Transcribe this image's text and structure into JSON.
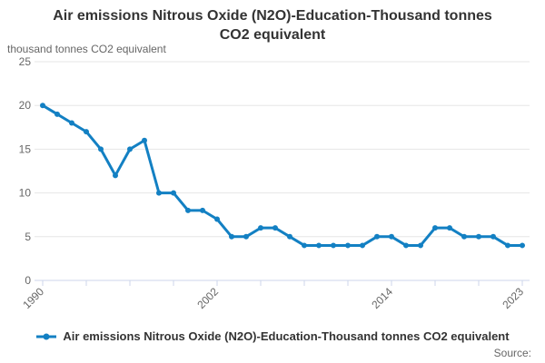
{
  "title": {
    "text": "Air emissions Nitrous Oxide (N2O)-Education-Thousand tonnes CO2 equivalent"
  },
  "y_axis_title": "thousand tonnes CO2 equivalent",
  "legend": {
    "label": "Air emissions Nitrous Oxide (N2O)-Education-Thousand tonnes CO2 equivalent"
  },
  "source_label": "Source:",
  "colors": {
    "line": "#1380C3",
    "axis": "#ccd6eb",
    "grid": "#e6e6e6",
    "tick_label": "#666666",
    "title": "#333333"
  },
  "chart_data": {
    "type": "line",
    "title": "Air emissions Nitrous Oxide (N2O)-Education-Thousand tonnes CO2 equivalent",
    "xlabel": "",
    "ylabel": "thousand tonnes CO2 equivalent",
    "series": [
      {
        "name": "Air emissions Nitrous Oxide (N2O)-Education-Thousand tonnes CO2 equivalent",
        "x": [
          1990,
          1991,
          1992,
          1993,
          1994,
          1995,
          1996,
          1997,
          1998,
          1999,
          2000,
          2001,
          2002,
          2003,
          2004,
          2005,
          2006,
          2007,
          2008,
          2009,
          2010,
          2011,
          2012,
          2013,
          2014,
          2015,
          2016,
          2017,
          2018,
          2019,
          2020,
          2021,
          2022,
          2023
        ],
        "values": [
          20,
          19,
          18,
          17,
          15,
          12,
          15,
          16,
          10,
          10,
          8,
          8,
          7,
          5,
          5,
          6,
          6,
          5,
          4,
          4,
          4,
          4,
          4,
          5,
          5,
          4,
          4,
          6,
          6,
          5,
          5,
          5,
          4,
          4
        ]
      }
    ],
    "ylim": [
      0,
      25
    ],
    "y_ticks": [
      0,
      5,
      10,
      15,
      20,
      25
    ],
    "x_ticks": [
      1990,
      1993,
      1996,
      1999,
      2002,
      2005,
      2008,
      2011,
      2014,
      2017,
      2020,
      2023
    ],
    "x_tick_labels": [
      1990,
      2002,
      2014,
      2023
    ],
    "grid": true,
    "legend_position": "bottom",
    "marker": "circle"
  }
}
